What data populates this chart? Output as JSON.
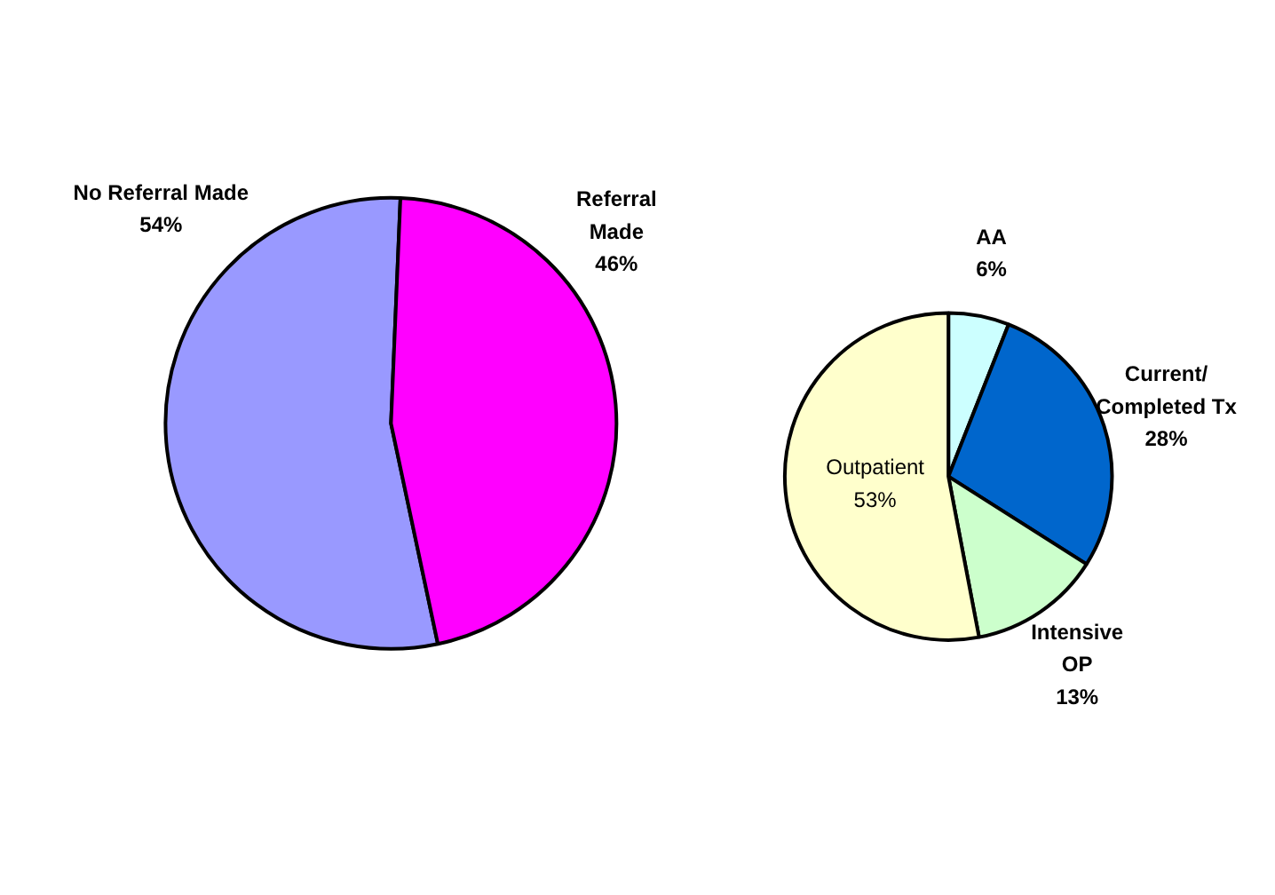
{
  "chart_data": [
    {
      "type": "pie",
      "categories": [
        "No Referral Made",
        "Referral\nMade"
      ],
      "values": [
        54,
        46
      ],
      "value_labels": [
        "54%",
        "46%"
      ],
      "colors": [
        "#9999ff",
        "#ff00ff"
      ]
    },
    {
      "type": "pie",
      "categories": [
        "AA",
        "Current/\nCompleted Tx",
        "Intensive\nOP",
        "Outpatient"
      ],
      "values": [
        6,
        28,
        13,
        53
      ],
      "value_labels": [
        "6%",
        "28%",
        "13%",
        "53%"
      ],
      "colors": [
        "#ccffff",
        "#0066cc",
        "#ccffcc",
        "#ffffcc"
      ]
    }
  ]
}
